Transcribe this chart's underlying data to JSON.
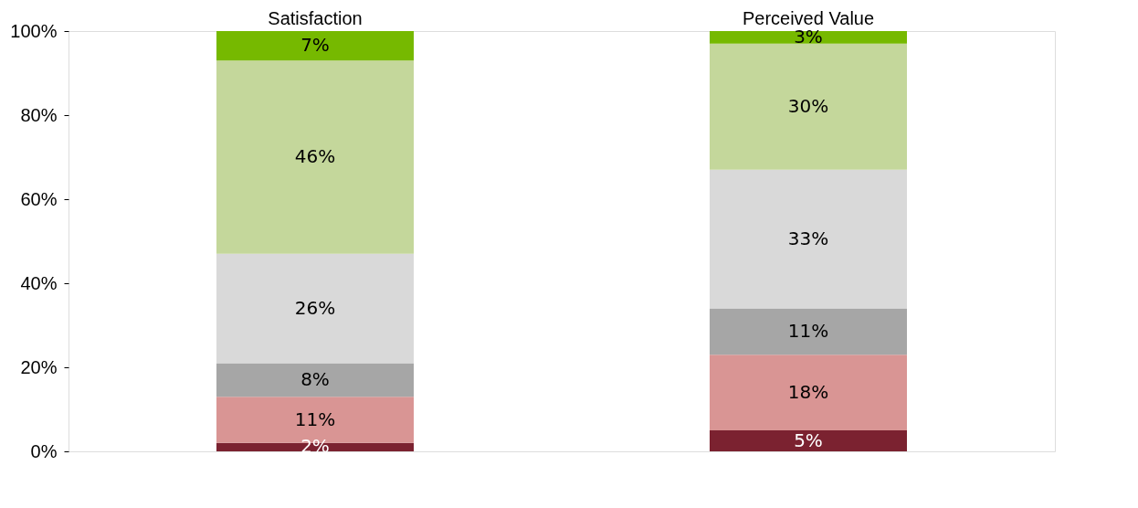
{
  "chart_data": {
    "type": "bar",
    "stacked": true,
    "categories": [
      "Satisfaction",
      "Perceived Value"
    ],
    "series": [
      {
        "color": "#7b2230",
        "values": [
          2,
          5
        ],
        "value_labels": [
          "2%",
          "5%"
        ]
      },
      {
        "color": "#d99594",
        "values": [
          11,
          18
        ],
        "value_labels": [
          "11%",
          "18%"
        ]
      },
      {
        "color": "#a6a6a6",
        "values": [
          8,
          11
        ],
        "value_labels": [
          "8%",
          "11%"
        ]
      },
      {
        "color": "#d9d9d9",
        "values": [
          26,
          33
        ],
        "value_labels": [
          "26%",
          "33%"
        ]
      },
      {
        "color": "#c4d79b",
        "values": [
          46,
          30
        ],
        "value_labels": [
          "46%",
          "30%"
        ]
      },
      {
        "color": "#76b900",
        "values": [
          7,
          3
        ],
        "value_labels": [
          "7%",
          "3%"
        ]
      }
    ],
    "ylim": [
      0,
      100
    ],
    "yticks": [
      {
        "value": 0,
        "label": "0%"
      },
      {
        "value": 20,
        "label": "20%"
      },
      {
        "value": 40,
        "label": "40%"
      },
      {
        "value": 60,
        "label": "60%"
      },
      {
        "value": 80,
        "label": "80%"
      },
      {
        "value": 100,
        "label": "100%"
      }
    ],
    "grid": false,
    "legend": false
  }
}
